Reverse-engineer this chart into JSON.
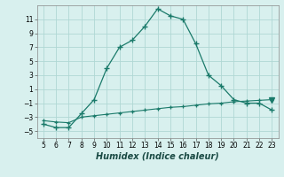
{
  "xlabel": "Humidex (Indice chaleur)",
  "x": [
    5,
    6,
    7,
    8,
    9,
    10,
    11,
    12,
    13,
    14,
    15,
    16,
    17,
    18,
    19,
    20,
    21,
    22,
    23
  ],
  "y_curve": [
    -4.0,
    -4.5,
    -4.5,
    -2.5,
    -0.5,
    4.0,
    7.0,
    8.0,
    10.0,
    12.5,
    11.5,
    11.0,
    7.5,
    3.0,
    1.5,
    -0.5,
    -1.0,
    -1.0,
    -2.0
  ],
  "y_line": [
    -3.5,
    -3.7,
    -3.8,
    -3.0,
    -2.8,
    -2.6,
    -2.4,
    -2.2,
    -2.0,
    -1.8,
    -1.6,
    -1.5,
    -1.3,
    -1.1,
    -1.0,
    -0.8,
    -0.7,
    -0.6,
    -0.5
  ],
  "line_color": "#1a7a6a",
  "bg_color": "#d8f0ee",
  "grid_color": "#b0d8d4",
  "ylim": [
    -6,
    13
  ],
  "xlim": [
    4.5,
    23.5
  ],
  "yticks": [
    -5,
    -3,
    -1,
    1,
    3,
    5,
    7,
    9,
    11
  ],
  "xticks": [
    5,
    6,
    7,
    8,
    9,
    10,
    11,
    12,
    13,
    14,
    15,
    16,
    17,
    18,
    19,
    20,
    21,
    22,
    23
  ],
  "tick_labelsize": 5.5,
  "xlabel_fontsize": 7
}
